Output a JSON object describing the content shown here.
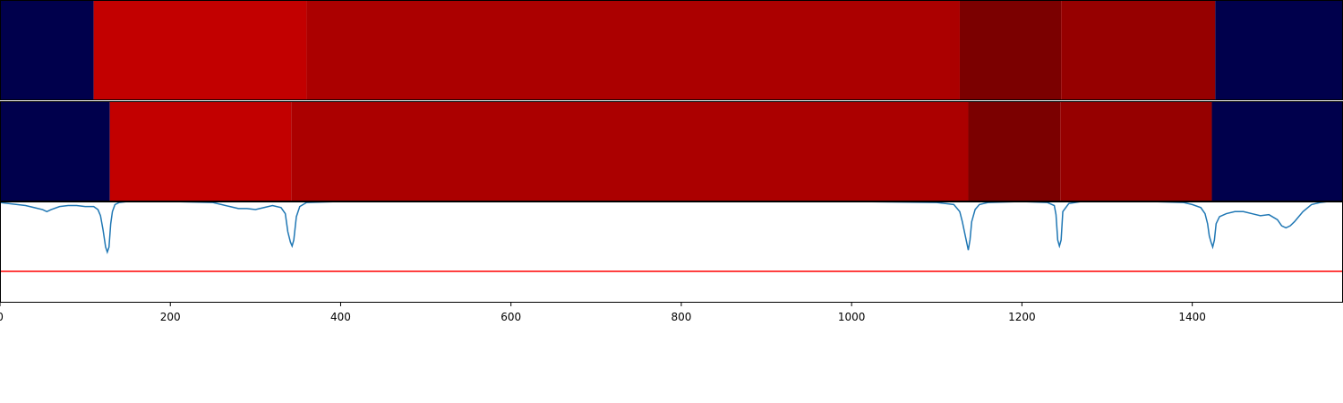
{
  "chart_data": [
    {
      "type": "heatmap",
      "title": "",
      "xlim": [
        0,
        1577
      ],
      "segments": [
        {
          "start": 0,
          "end": 110,
          "color": "#00004c"
        },
        {
          "start": 110,
          "end": 360,
          "color": "#c20000"
        },
        {
          "start": 360,
          "end": 1127,
          "color": "#ab0000"
        },
        {
          "start": 1127,
          "end": 1246,
          "color": "#7b0000"
        },
        {
          "start": 1246,
          "end": 1427,
          "color": "#960000"
        },
        {
          "start": 1427,
          "end": 1577,
          "color": "#00004c"
        }
      ]
    },
    {
      "type": "heatmap",
      "title": "",
      "xlim": [
        0,
        1577
      ],
      "segments": [
        {
          "start": 0,
          "end": 129,
          "color": "#00004c"
        },
        {
          "start": 129,
          "end": 342,
          "color": "#c20000"
        },
        {
          "start": 342,
          "end": 1137,
          "color": "#ab0000"
        },
        {
          "start": 1137,
          "end": 1245,
          "color": "#7b0000"
        },
        {
          "start": 1245,
          "end": 1423,
          "color": "#960000"
        },
        {
          "start": 1423,
          "end": 1577,
          "color": "#00004c"
        }
      ]
    },
    {
      "type": "line",
      "title": "",
      "xlabel": "",
      "ylabel": "",
      "xlim": [
        0,
        1577
      ],
      "ylim": [
        0,
        1
      ],
      "xticks": [
        0,
        200,
        400,
        600,
        800,
        1000,
        1200,
        1400
      ],
      "xtick_labels": [
        "0",
        "200",
        "400",
        "600",
        "800",
        "1000",
        "1200",
        "1400"
      ],
      "threshold": 0.31,
      "threshold_color": "#ff0000",
      "line_color": "#1f77b4",
      "series": [
        {
          "x": [
            0,
            10,
            20,
            30,
            40,
            50,
            55,
            60,
            70,
            80,
            90,
            100,
            110,
            115,
            118,
            121,
            124,
            126,
            128,
            130,
            132,
            135,
            140,
            150,
            200,
            250,
            260,
            270,
            280,
            290,
            300,
            310,
            320,
            330,
            335,
            338,
            341,
            343,
            345,
            348,
            352,
            360,
            400,
            600,
            800,
            1000,
            1100,
            1120,
            1127,
            1130,
            1133,
            1135,
            1137,
            1139,
            1141,
            1145,
            1150,
            1160,
            1200,
            1230,
            1238,
            1240,
            1242,
            1244,
            1246,
            1248,
            1255,
            1270,
            1350,
            1390,
            1400,
            1410,
            1415,
            1418,
            1420,
            1422,
            1424,
            1426,
            1428,
            1432,
            1440,
            1450,
            1460,
            1470,
            1480,
            1490,
            1500,
            1505,
            1510,
            1515,
            1520,
            1530,
            1540,
            1550,
            1560,
            1577
          ],
          "y": [
            0.99,
            0.98,
            0.97,
            0.96,
            0.94,
            0.92,
            0.9,
            0.92,
            0.95,
            0.96,
            0.96,
            0.95,
            0.95,
            0.92,
            0.86,
            0.72,
            0.55,
            0.5,
            0.55,
            0.78,
            0.9,
            0.97,
            0.99,
            1.0,
            1.0,
            0.99,
            0.97,
            0.95,
            0.93,
            0.93,
            0.92,
            0.94,
            0.96,
            0.94,
            0.88,
            0.7,
            0.6,
            0.56,
            0.62,
            0.85,
            0.95,
            0.99,
            1.0,
            1.0,
            1.0,
            1.0,
            0.99,
            0.97,
            0.9,
            0.8,
            0.68,
            0.6,
            0.52,
            0.62,
            0.8,
            0.92,
            0.97,
            0.99,
            1.0,
            0.99,
            0.96,
            0.87,
            0.62,
            0.56,
            0.62,
            0.9,
            0.98,
            1.0,
            1.0,
            0.99,
            0.97,
            0.94,
            0.88,
            0.78,
            0.66,
            0.6,
            0.55,
            0.62,
            0.78,
            0.85,
            0.88,
            0.9,
            0.9,
            0.88,
            0.86,
            0.87,
            0.82,
            0.76,
            0.74,
            0.76,
            0.8,
            0.9,
            0.97,
            0.99,
            1.0,
            1.0
          ]
        }
      ]
    }
  ]
}
